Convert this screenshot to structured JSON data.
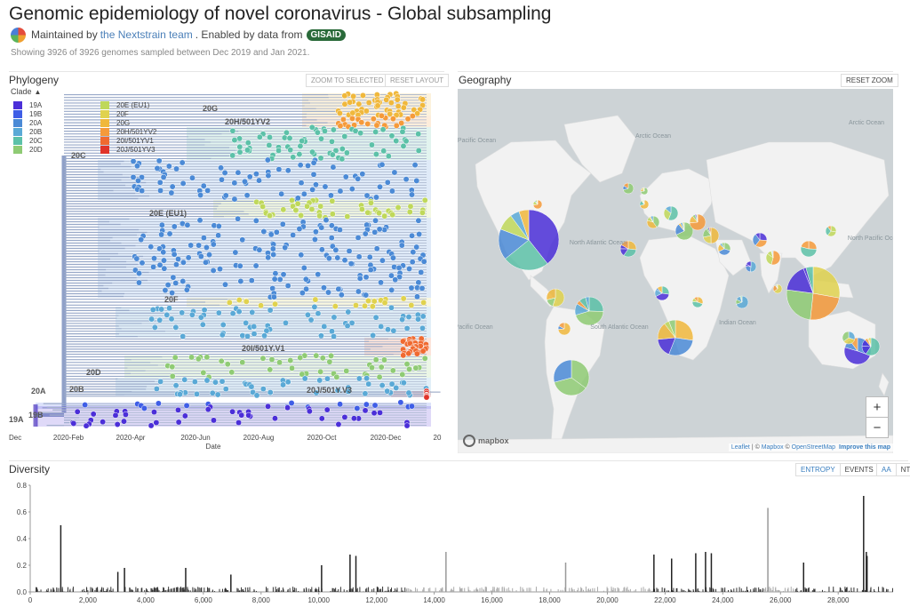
{
  "header": {
    "title": "Genomic epidemiology of novel coronavirus - Global subsampling",
    "maintained_prefix": "Maintained by",
    "maintained_link": "the Nextstrain team",
    "enabled_text": ". Enabled by data from",
    "gisaid": "GISAID",
    "showing": "Showing 3926 of 3926 genomes sampled between Dec 2019 and Jan 2021."
  },
  "phylogeny": {
    "title": "Phylogeny",
    "zoom_to_selected": "ZOOM TO SELECTED",
    "reset_layout": "RESET LAYOUT",
    "legend_title": "Clade",
    "legend_left": [
      {
        "label": "19A",
        "color": "#4b2fd8"
      },
      {
        "label": "19B",
        "color": "#3f5ee6"
      },
      {
        "label": "20A",
        "color": "#4b8ad6"
      },
      {
        "label": "20B",
        "color": "#5aa9d6"
      },
      {
        "label": "20C",
        "color": "#5cc1a8"
      },
      {
        "label": "20D",
        "color": "#8fcb74"
      }
    ],
    "legend_right": [
      {
        "label": "20E (EU1)",
        "color": "#bfd85a"
      },
      {
        "label": "20F",
        "color": "#e0d24e"
      },
      {
        "label": "20G",
        "color": "#f0b83c"
      },
      {
        "label": "20H/501YV2",
        "color": "#f59a3a"
      },
      {
        "label": "20I/501YV1",
        "color": "#f06a30"
      },
      {
        "label": "20J/501YV3",
        "color": "#e0342a"
      }
    ],
    "clade_labels": [
      "20G",
      "20H/501YV2",
      "20C",
      "20E (EU1)",
      "20F",
      "20I/501Y.V1",
      "20D",
      "20J/501Y.V3",
      "20A",
      "20B",
      "19A",
      "19B"
    ],
    "x_ticks": [
      "Dec",
      "2020-Feb",
      "2020-Apr",
      "2020-Jun",
      "2020-Aug",
      "2020-Oct",
      "2020-Dec",
      "20"
    ],
    "x_label": "Date"
  },
  "geography": {
    "title": "Geography",
    "reset_zoom": "RESET ZOOM",
    "zoom_in": "+",
    "zoom_out": "−",
    "attribution_leaflet": "Leaflet",
    "attribution_sep1": " | © ",
    "attribution_mapbox": "Mapbox",
    "attribution_sep2": " © ",
    "attribution_osm": "OpenStreetMap",
    "attribution_improve": "Improve this map",
    "mapbox_logo": "mapbox",
    "ocean_labels": [
      "Arctic Ocean",
      "Arctic Ocean",
      "North Atlantic Ocean",
      "South Atlantic Ocean",
      "Indian Ocean",
      "South Pacific Ocean",
      "North Pacific Ocean",
      "North Pacific Ocean"
    ],
    "colors": {
      "ocean": "#cdd3d6",
      "land": "#f2f2f2"
    }
  },
  "diversity": {
    "title": "Diversity",
    "entropy": "ENTROPY",
    "events": "EVENTS",
    "aa": "AA",
    "nt": "NT",
    "chart_data": {
      "type": "bar",
      "title": "",
      "xlabel": "",
      "ylabel": "",
      "ylim": [
        0,
        0.8
      ],
      "xlim": [
        0,
        29903
      ],
      "y_ticks": [
        "0.0",
        "0.2",
        "0.4",
        "0.6",
        "0.8"
      ],
      "x_ticks": [
        "0",
        "2,000",
        "4,000",
        "6,000",
        "8,000",
        "10,000",
        "12,000",
        "14,000",
        "16,000",
        "18,000",
        "20,000",
        "22,000",
        "24,000",
        "26,000",
        "28,000"
      ],
      "peaks": [
        {
          "x": 1059,
          "y": 0.5
        },
        {
          "x": 3037,
          "y": 0.15
        },
        {
          "x": 3267,
          "y": 0.18
        },
        {
          "x": 5388,
          "y": 0.18
        },
        {
          "x": 6954,
          "y": 0.13
        },
        {
          "x": 10097,
          "y": 0.2
        },
        {
          "x": 11083,
          "y": 0.28
        },
        {
          "x": 11287,
          "y": 0.27
        },
        {
          "x": 14408,
          "y": 0.3
        },
        {
          "x": 18555,
          "y": 0.22
        },
        {
          "x": 21614,
          "y": 0.28
        },
        {
          "x": 22227,
          "y": 0.25
        },
        {
          "x": 23063,
          "y": 0.29
        },
        {
          "x": 23403,
          "y": 0.3
        },
        {
          "x": 23604,
          "y": 0.29
        },
        {
          "x": 25563,
          "y": 0.63
        },
        {
          "x": 26801,
          "y": 0.22
        },
        {
          "x": 28881,
          "y": 0.72
        },
        {
          "x": 28975,
          "y": 0.3
        },
        {
          "x": 29000,
          "y": 0.27
        }
      ]
    }
  }
}
